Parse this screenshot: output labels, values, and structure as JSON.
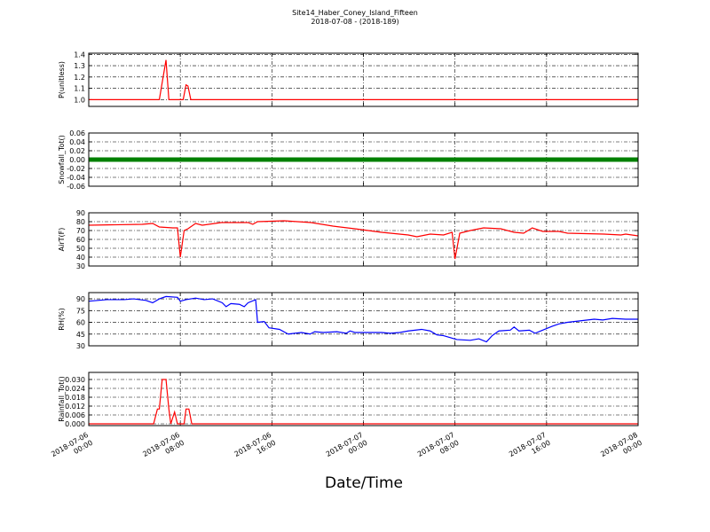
{
  "title": "Site14_Haber_Coney_Island_Fifteen",
  "subtitle": "2018-07-08 - (2018-189)",
  "xlabel": "Date/Time",
  "xlim": [
    "2018-07-06 00:00",
    "2018-07-08 00:00"
  ],
  "xticks": [
    {
      "value": "2018-07-06 00:00",
      "label": "2018-07-06 00:00"
    },
    {
      "value": "2018-07-06 08:00",
      "label": "2018-07-06 08:00"
    },
    {
      "value": "2018-07-06 16:00",
      "label": "2018-07-06 16:00"
    },
    {
      "value": "2018-07-07 00:00",
      "label": "2018-07-07 00:00"
    },
    {
      "value": "2018-07-07 08:00",
      "label": "2018-07-07 08:00"
    },
    {
      "value": "2018-07-07 16:00",
      "label": "2018-07-07 16:00"
    },
    {
      "value": "2018-07-08 00:00",
      "label": "2018-07-08 00:00"
    }
  ],
  "chart_data": [
    {
      "type": "line",
      "ylabel": "P(unitless)",
      "ylim": [
        0.94,
        1.41
      ],
      "grid": true,
      "yticks": [
        {
          "value": 1.0,
          "label": "1.0"
        },
        1.1,
        1.2,
        1.3,
        1.4
      ],
      "x": [
        "2018-07-06 00:00",
        "2018-07-06 06:10",
        "2018-07-06 06:45",
        "2018-07-06 07:00",
        "2018-07-06 08:15",
        "2018-07-06 08:30",
        "2018-07-06 08:40",
        "2018-07-06 08:55",
        "2018-07-08 00:00"
      ],
      "series": [
        {
          "color": "#ff0000",
          "values": [
            1.0,
            1.0,
            1.35,
            1.0,
            1.0,
            1.13,
            1.12,
            1.0,
            1.0
          ]
        }
      ]
    },
    {
      "type": "line",
      "ylabel": "Snowfall_Tot()",
      "ylim": [
        -0.06,
        0.06
      ],
      "grid": true,
      "marker": "o",
      "yticks": [
        -0.06,
        -0.04,
        -0.02,
        {
          "value": 0,
          "label": "0.00"
        },
        0.02,
        0.04,
        0.06
      ],
      "x": [
        "2018-07-06 00:00",
        "2018-07-08 00:00"
      ],
      "series": [
        {
          "color": "#008000",
          "values": [
            0,
            0
          ]
        }
      ]
    },
    {
      "type": "line",
      "ylabel": "AirT(F)",
      "ylim": [
        30,
        90
      ],
      "grid": true,
      "yticks": [
        30,
        40,
        50,
        60,
        70,
        80,
        90
      ],
      "x": [
        "2018-07-06 00:00",
        "2018-07-06 04:40",
        "2018-07-06 05:35",
        "2018-07-06 06:10",
        "2018-07-06 07:20",
        "2018-07-06 07:45",
        "2018-07-06 08:00",
        "2018-07-06 08:20",
        "2018-07-06 08:40",
        "2018-07-06 09:20",
        "2018-07-06 09:55",
        "2018-07-06 11:35",
        "2018-07-06 13:55",
        "2018-07-06 14:20",
        "2018-07-06 14:45",
        "2018-07-06 17:05",
        "2018-07-06 19:25",
        "2018-07-06 21:20",
        "2018-07-06 23:15",
        "2018-07-07 01:35",
        "2018-07-07 03:55",
        "2018-07-07 04:40",
        "2018-07-07 05:50",
        "2018-07-07 07:00",
        "2018-07-07 07:45",
        "2018-07-07 08:00",
        "2018-07-07 08:25",
        "2018-07-07 09:20",
        "2018-07-07 10:30",
        "2018-07-07 12:00",
        "2018-07-07 13:10",
        "2018-07-07 14:00",
        "2018-07-07 14:45",
        "2018-07-07 15:40",
        "2018-07-07 17:05",
        "2018-07-07 17:50",
        "2018-07-07 21:00",
        "2018-07-07 22:30",
        "2018-07-07 22:55",
        "2018-07-08 00:00"
      ],
      "series": [
        {
          "color": "#ff0000",
          "values": [
            76,
            77,
            78,
            74,
            73,
            73,
            40,
            70,
            72,
            78,
            76,
            79,
            79,
            77,
            80,
            81,
            79,
            75,
            72,
            68,
            65,
            63,
            66,
            65,
            68,
            38,
            67,
            70,
            73,
            72,
            68,
            67,
            73,
            69,
            69,
            67,
            66,
            65,
            66,
            64
          ]
        }
      ]
    },
    {
      "type": "line",
      "ylabel": "RH(%)",
      "ylim": [
        30,
        98
      ],
      "grid": true,
      "yticks": [
        30,
        45,
        60,
        75,
        90
      ],
      "x": [
        "2018-07-06 00:00",
        "2018-07-06 01:35",
        "2018-07-06 03:05",
        "2018-07-06 03:55",
        "2018-07-06 05:00",
        "2018-07-06 05:35",
        "2018-07-06 06:10",
        "2018-07-06 06:45",
        "2018-07-06 07:45",
        "2018-07-06 08:00",
        "2018-07-06 08:30",
        "2018-07-06 09:20",
        "2018-07-06 10:05",
        "2018-07-06 10:50",
        "2018-07-06 11:40",
        "2018-07-06 12:00",
        "2018-07-06 12:25",
        "2018-07-06 13:10",
        "2018-07-06 13:35",
        "2018-07-06 13:55",
        "2018-07-06 14:35",
        "2018-07-06 14:45",
        "2018-07-06 15:20",
        "2018-07-06 15:45",
        "2018-07-06 16:40",
        "2018-07-06 17:25",
        "2018-07-06 18:35",
        "2018-07-06 19:20",
        "2018-07-06 19:45",
        "2018-07-06 20:30",
        "2018-07-06 21:40",
        "2018-07-06 22:30",
        "2018-07-06 22:50",
        "2018-07-06 23:15",
        "2018-07-07 01:35",
        "2018-07-07 02:20",
        "2018-07-07 03:10",
        "2018-07-07 03:55",
        "2018-07-07 05:05",
        "2018-07-07 05:50",
        "2018-07-07 06:25",
        "2018-07-07 07:00",
        "2018-07-07 08:10",
        "2018-07-07 09:20",
        "2018-07-07 10:05",
        "2018-07-07 10:45",
        "2018-07-07 11:15",
        "2018-07-07 11:50",
        "2018-07-07 12:50",
        "2018-07-07 13:10",
        "2018-07-07 13:35",
        "2018-07-07 14:30",
        "2018-07-07 15:00",
        "2018-07-07 15:30",
        "2018-07-07 16:30",
        "2018-07-07 17:05",
        "2018-07-07 17:50",
        "2018-07-07 19:00",
        "2018-07-07 20:10",
        "2018-07-07 20:55",
        "2018-07-07 21:45",
        "2018-07-07 22:55",
        "2018-07-08 00:00"
      ],
      "series": [
        {
          "color": "#0000ff",
          "values": [
            87,
            89,
            89,
            90,
            88,
            85,
            90,
            93,
            92,
            87,
            89,
            91,
            89,
            90,
            85,
            80,
            84,
            83,
            80,
            85,
            89,
            60,
            61,
            53,
            51,
            45,
            47,
            45,
            48,
            47,
            48,
            46,
            49,
            47,
            47,
            46,
            47,
            49,
            51,
            49,
            44,
            43,
            38,
            37,
            39,
            35,
            43,
            49,
            50,
            54,
            49,
            50,
            46,
            49,
            55,
            58,
            60,
            62,
            64,
            63,
            65,
            64,
            64
          ]
        }
      ]
    },
    {
      "type": "line",
      "ylabel": "Rainfall_Tot()",
      "ylim": [
        -0.0012,
        0.0348
      ],
      "grid": true,
      "yticks": [
        {
          "value": 0,
          "label": "0.000"
        },
        {
          "value": 0.006,
          "label": "0.006"
        },
        {
          "value": 0.012,
          "label": "0.012"
        },
        {
          "value": 0.018,
          "label": "0.018"
        },
        {
          "value": 0.024,
          "label": "0.024"
        },
        {
          "value": 0.03,
          "label": "0.030"
        }
      ],
      "x": [
        "2018-07-06 00:00",
        "2018-07-06 05:40",
        "2018-07-06 06:00",
        "2018-07-06 06:10",
        "2018-07-06 06:25",
        "2018-07-06 06:45",
        "2018-07-06 07:00",
        "2018-07-06 07:10",
        "2018-07-06 07:30",
        "2018-07-06 07:45",
        "2018-07-06 08:20",
        "2018-07-06 08:30",
        "2018-07-06 08:45",
        "2018-07-06 09:00",
        "2018-07-08 00:00"
      ],
      "series": [
        {
          "color": "#ff0000",
          "values": [
            0,
            0,
            0.01,
            0.01,
            0.03,
            0.03,
            0.01,
            0,
            0.008,
            0,
            0,
            0.01,
            0.01,
            0,
            0
          ]
        }
      ]
    }
  ]
}
